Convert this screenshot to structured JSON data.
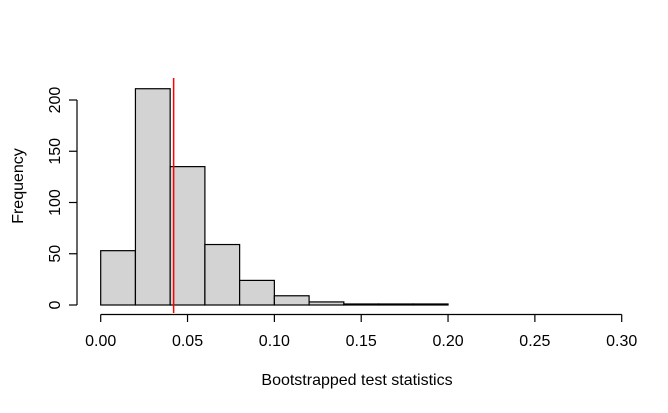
{
  "figure": {
    "background": "#FFFFFF",
    "title": ""
  },
  "chart_data": {
    "type": "bar",
    "subtype": "histogram",
    "title": "",
    "xlabel": "Bootstrapped test statistics",
    "ylabel": "Frequency",
    "bins": {
      "start": 0.0,
      "width": 0.02,
      "counts": [
        53,
        211,
        135,
        59,
        24,
        9,
        3,
        1,
        1,
        1
      ]
    },
    "x_ticks": [
      {
        "value": 0.0,
        "label": "0.00"
      },
      {
        "value": 0.05,
        "label": "0.05"
      },
      {
        "value": 0.1,
        "label": "0.10"
      },
      {
        "value": 0.15,
        "label": "0.15"
      },
      {
        "value": 0.2,
        "label": "0.20"
      },
      {
        "value": 0.25,
        "label": "0.25"
      },
      {
        "value": 0.3,
        "label": "0.30"
      }
    ],
    "y_ticks": [
      {
        "value": 0,
        "label": "0"
      },
      {
        "value": 50,
        "label": "50"
      },
      {
        "value": 100,
        "label": "100"
      },
      {
        "value": 150,
        "label": "150"
      },
      {
        "value": 200,
        "label": "200"
      }
    ],
    "xlim": [
      0.0,
      0.3
    ],
    "ylim": [
      0,
      200
    ],
    "grid": false,
    "legend": "none",
    "vline": {
      "value": 0.042,
      "color": "#FF0000"
    },
    "bar_fill": "#D3D3D3",
    "bar_stroke": "#000000",
    "axis_color": "#000000"
  }
}
